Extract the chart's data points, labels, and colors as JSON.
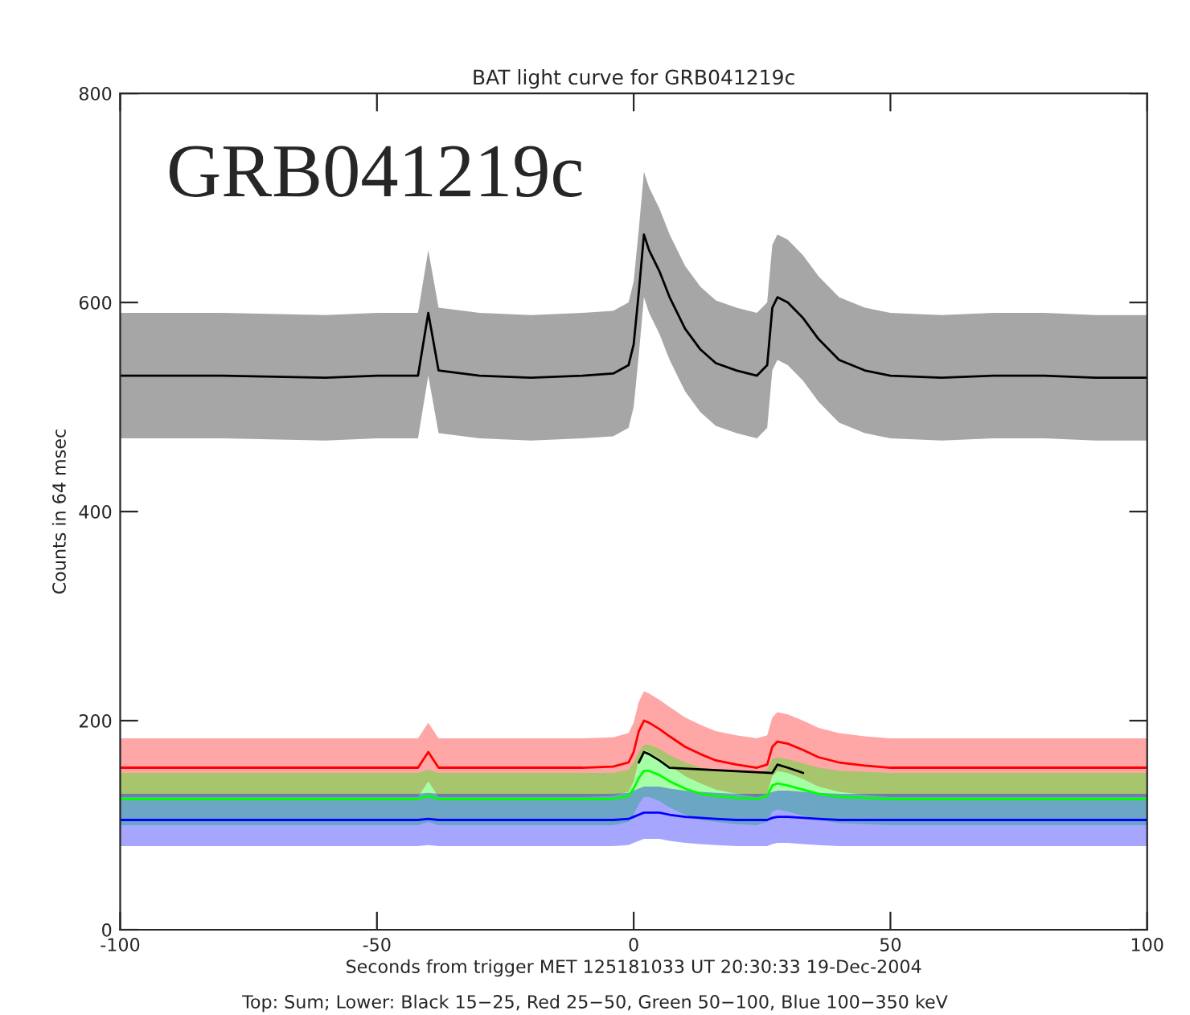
{
  "chart_data": {
    "type": "line",
    "title": "BAT light curve for GRB041219c",
    "xlabel": "Seconds from trigger MET 125181033 UT 20:30:33 19-Dec-2004",
    "ylabel": "Counts in 64 msec",
    "annotations": [
      "GRB041219c",
      "Top: Sum; Lower: Black 15−25, Red 25−50, Green 50−100, Blue 100−350 keV"
    ],
    "x": [
      -100,
      -80,
      -60,
      -50,
      -42,
      -40,
      -38,
      -30,
      -20,
      -10,
      -4,
      -1,
      0,
      1,
      2,
      3,
      5,
      7,
      10,
      13,
      16,
      20,
      24,
      26,
      27,
      28,
      30,
      33,
      36,
      40,
      45,
      50,
      60,
      70,
      80,
      90,
      100
    ],
    "series": [
      {
        "color": "#000000",
        "values": [
          530,
          530,
          528,
          530,
          530,
          590,
          535,
          530,
          528,
          530,
          532,
          540,
          560,
          610,
          665,
          650,
          630,
          605,
          575,
          555,
          542,
          535,
          530,
          540,
          595,
          605,
          600,
          585,
          565,
          545,
          535,
          530,
          528,
          530,
          530,
          528,
          528
        ],
        "lower": [
          470,
          470,
          468,
          470,
          470,
          530,
          475,
          470,
          468,
          470,
          472,
          480,
          500,
          550,
          605,
          590,
          570,
          545,
          515,
          495,
          482,
          475,
          470,
          480,
          535,
          545,
          540,
          525,
          505,
          485,
          475,
          470,
          468,
          470,
          470,
          468,
          468
        ],
        "upper": [
          590,
          590,
          588,
          590,
          590,
          650,
          595,
          590,
          588,
          590,
          592,
          600,
          620,
          670,
          725,
          710,
          690,
          665,
          635,
          615,
          602,
          595,
          590,
          600,
          655,
          665,
          660,
          645,
          625,
          605,
          595,
          590,
          588,
          590,
          590,
          588,
          588
        ]
      },
      {
        "color": "#ff0000",
        "values": [
          155,
          155,
          155,
          155,
          155,
          170,
          155,
          155,
          155,
          155,
          156,
          160,
          170,
          190,
          200,
          198,
          192,
          185,
          175,
          168,
          162,
          158,
          155,
          158,
          175,
          180,
          178,
          172,
          165,
          160,
          157,
          155,
          155,
          155,
          155,
          155,
          155
        ],
        "lower": [
          127,
          127,
          127,
          127,
          127,
          142,
          127,
          127,
          127,
          127,
          128,
          132,
          142,
          162,
          172,
          170,
          164,
          157,
          147,
          140,
          134,
          130,
          127,
          130,
          147,
          152,
          150,
          144,
          137,
          132,
          129,
          127,
          127,
          127,
          127,
          127,
          127
        ],
        "upper": [
          183,
          183,
          183,
          183,
          183,
          198,
          183,
          183,
          183,
          183,
          184,
          188,
          198,
          218,
          228,
          226,
          220,
          213,
          203,
          196,
          190,
          186,
          183,
          186,
          203,
          208,
          206,
          200,
          193,
          188,
          185,
          183,
          183,
          183,
          183,
          183,
          183
        ]
      },
      {
        "color": "#000000",
        "values": [
          null,
          null,
          null,
          null,
          null,
          null,
          null,
          null,
          null,
          null,
          null,
          null,
          null,
          160,
          170,
          168,
          162,
          155,
          null,
          null,
          null,
          null,
          null,
          null,
          150,
          158,
          155,
          150,
          null,
          null,
          null,
          null,
          null,
          null,
          null,
          null,
          null
        ]
      },
      {
        "color": "#00ff00",
        "values": [
          125,
          125,
          125,
          125,
          125,
          128,
          125,
          125,
          125,
          125,
          125,
          128,
          135,
          145,
          152,
          152,
          148,
          142,
          135,
          130,
          128,
          126,
          125,
          128,
          138,
          140,
          138,
          134,
          130,
          127,
          126,
          125,
          125,
          125,
          125,
          125,
          125
        ],
        "lower": [
          100,
          100,
          100,
          100,
          100,
          103,
          100,
          100,
          100,
          100,
          100,
          103,
          110,
          120,
          127,
          127,
          123,
          117,
          110,
          105,
          103,
          101,
          100,
          103,
          113,
          115,
          113,
          109,
          105,
          102,
          101,
          100,
          100,
          100,
          100,
          100,
          100
        ],
        "upper": [
          150,
          150,
          150,
          150,
          150,
          153,
          150,
          150,
          150,
          150,
          150,
          153,
          160,
          170,
          177,
          177,
          173,
          167,
          160,
          155,
          153,
          151,
          150,
          153,
          163,
          165,
          163,
          159,
          155,
          152,
          151,
          150,
          150,
          150,
          150,
          150,
          150
        ]
      },
      {
        "color": "#0000ff",
        "values": [
          105,
          105,
          105,
          105,
          105,
          106,
          105,
          105,
          105,
          105,
          105,
          106,
          108,
          110,
          112,
          112,
          112,
          110,
          108,
          107,
          106,
          105,
          105,
          105,
          107,
          108,
          108,
          107,
          106,
          105,
          105,
          105,
          105,
          105,
          105,
          105,
          105
        ],
        "lower": [
          80,
          80,
          80,
          80,
          80,
          81,
          80,
          80,
          80,
          80,
          80,
          81,
          83,
          85,
          87,
          87,
          87,
          85,
          83,
          82,
          81,
          80,
          80,
          80,
          82,
          83,
          83,
          82,
          81,
          80,
          80,
          80,
          80,
          80,
          80,
          80,
          80
        ],
        "upper": [
          130,
          130,
          130,
          130,
          130,
          131,
          130,
          130,
          130,
          130,
          130,
          131,
          133,
          135,
          137,
          137,
          137,
          135,
          133,
          132,
          131,
          130,
          130,
          130,
          132,
          133,
          133,
          132,
          131,
          130,
          130,
          130,
          130,
          130,
          130,
          130,
          130
        ]
      }
    ],
    "xlim": [
      -100,
      100
    ],
    "xticks": [
      -100,
      -50,
      0,
      50,
      100
    ],
    "ylim": [
      0,
      800
    ],
    "yticks": [
      0,
      200,
      400,
      600,
      800
    ],
    "grid": false
  }
}
